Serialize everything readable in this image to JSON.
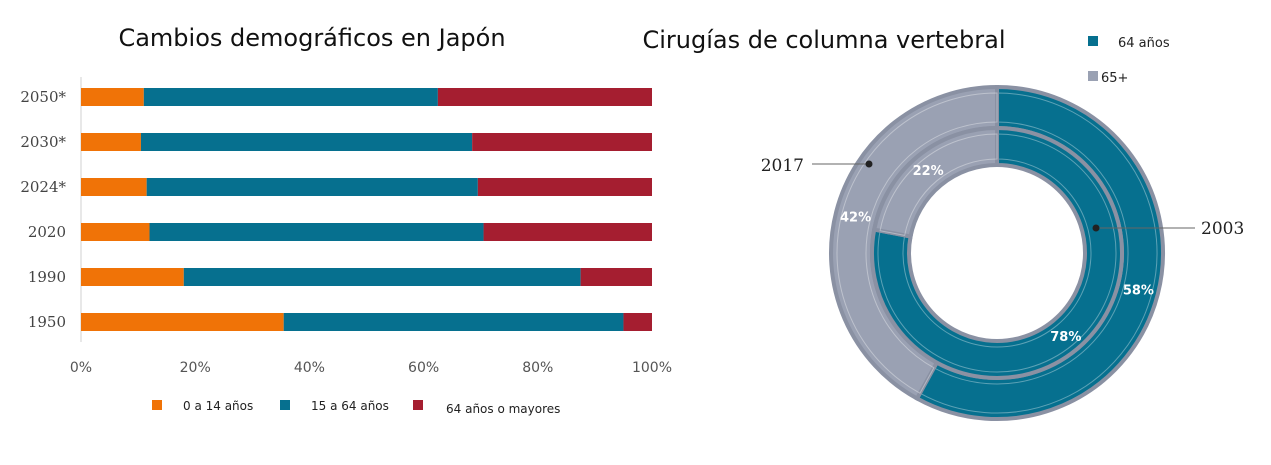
{
  "chart_data": [
    {
      "type": "bar",
      "orientation": "horizontal",
      "stacked": true,
      "title": "Cambios demográficos en Japón",
      "categories": [
        "2050*",
        "2030*",
        "2024*",
        "2020",
        "1990",
        "1950"
      ],
      "series": [
        {
          "name": "0 a 14 años",
          "values": [
            11,
            10.5,
            11.5,
            12,
            18,
            35.5
          ]
        },
        {
          "name": "15 a 64 años",
          "values": [
            51.5,
            58,
            58,
            58.5,
            69.5,
            59.5
          ]
        },
        {
          "name": "64 años o mayores",
          "values": [
            37.5,
            31.5,
            30.5,
            29.5,
            12.5,
            5
          ]
        }
      ],
      "x_ticks": [
        "0%",
        "20%",
        "40%",
        "60%",
        "80%",
        "100%"
      ],
      "xlim": [
        0,
        100
      ],
      "legend": "bottom",
      "grid": false,
      "colors": [
        "#f07307",
        "#06708f",
        "#a51e30"
      ]
    },
    {
      "type": "pie",
      "variant": "double-donut",
      "title": "Cirugías de columna vertebral",
      "legend": "top-right",
      "legend_entries": [
        "64 años",
        "65+"
      ],
      "colors": [
        "#06708f",
        "#9aa1b3"
      ],
      "rings": [
        {
          "name": "2003",
          "position": "inner",
          "values": [
            78,
            22
          ],
          "labels": [
            "78%",
            "22%"
          ]
        },
        {
          "name": "2017",
          "position": "outer",
          "values": [
            58,
            42
          ],
          "labels": [
            "58%",
            "42%"
          ]
        }
      ]
    }
  ]
}
